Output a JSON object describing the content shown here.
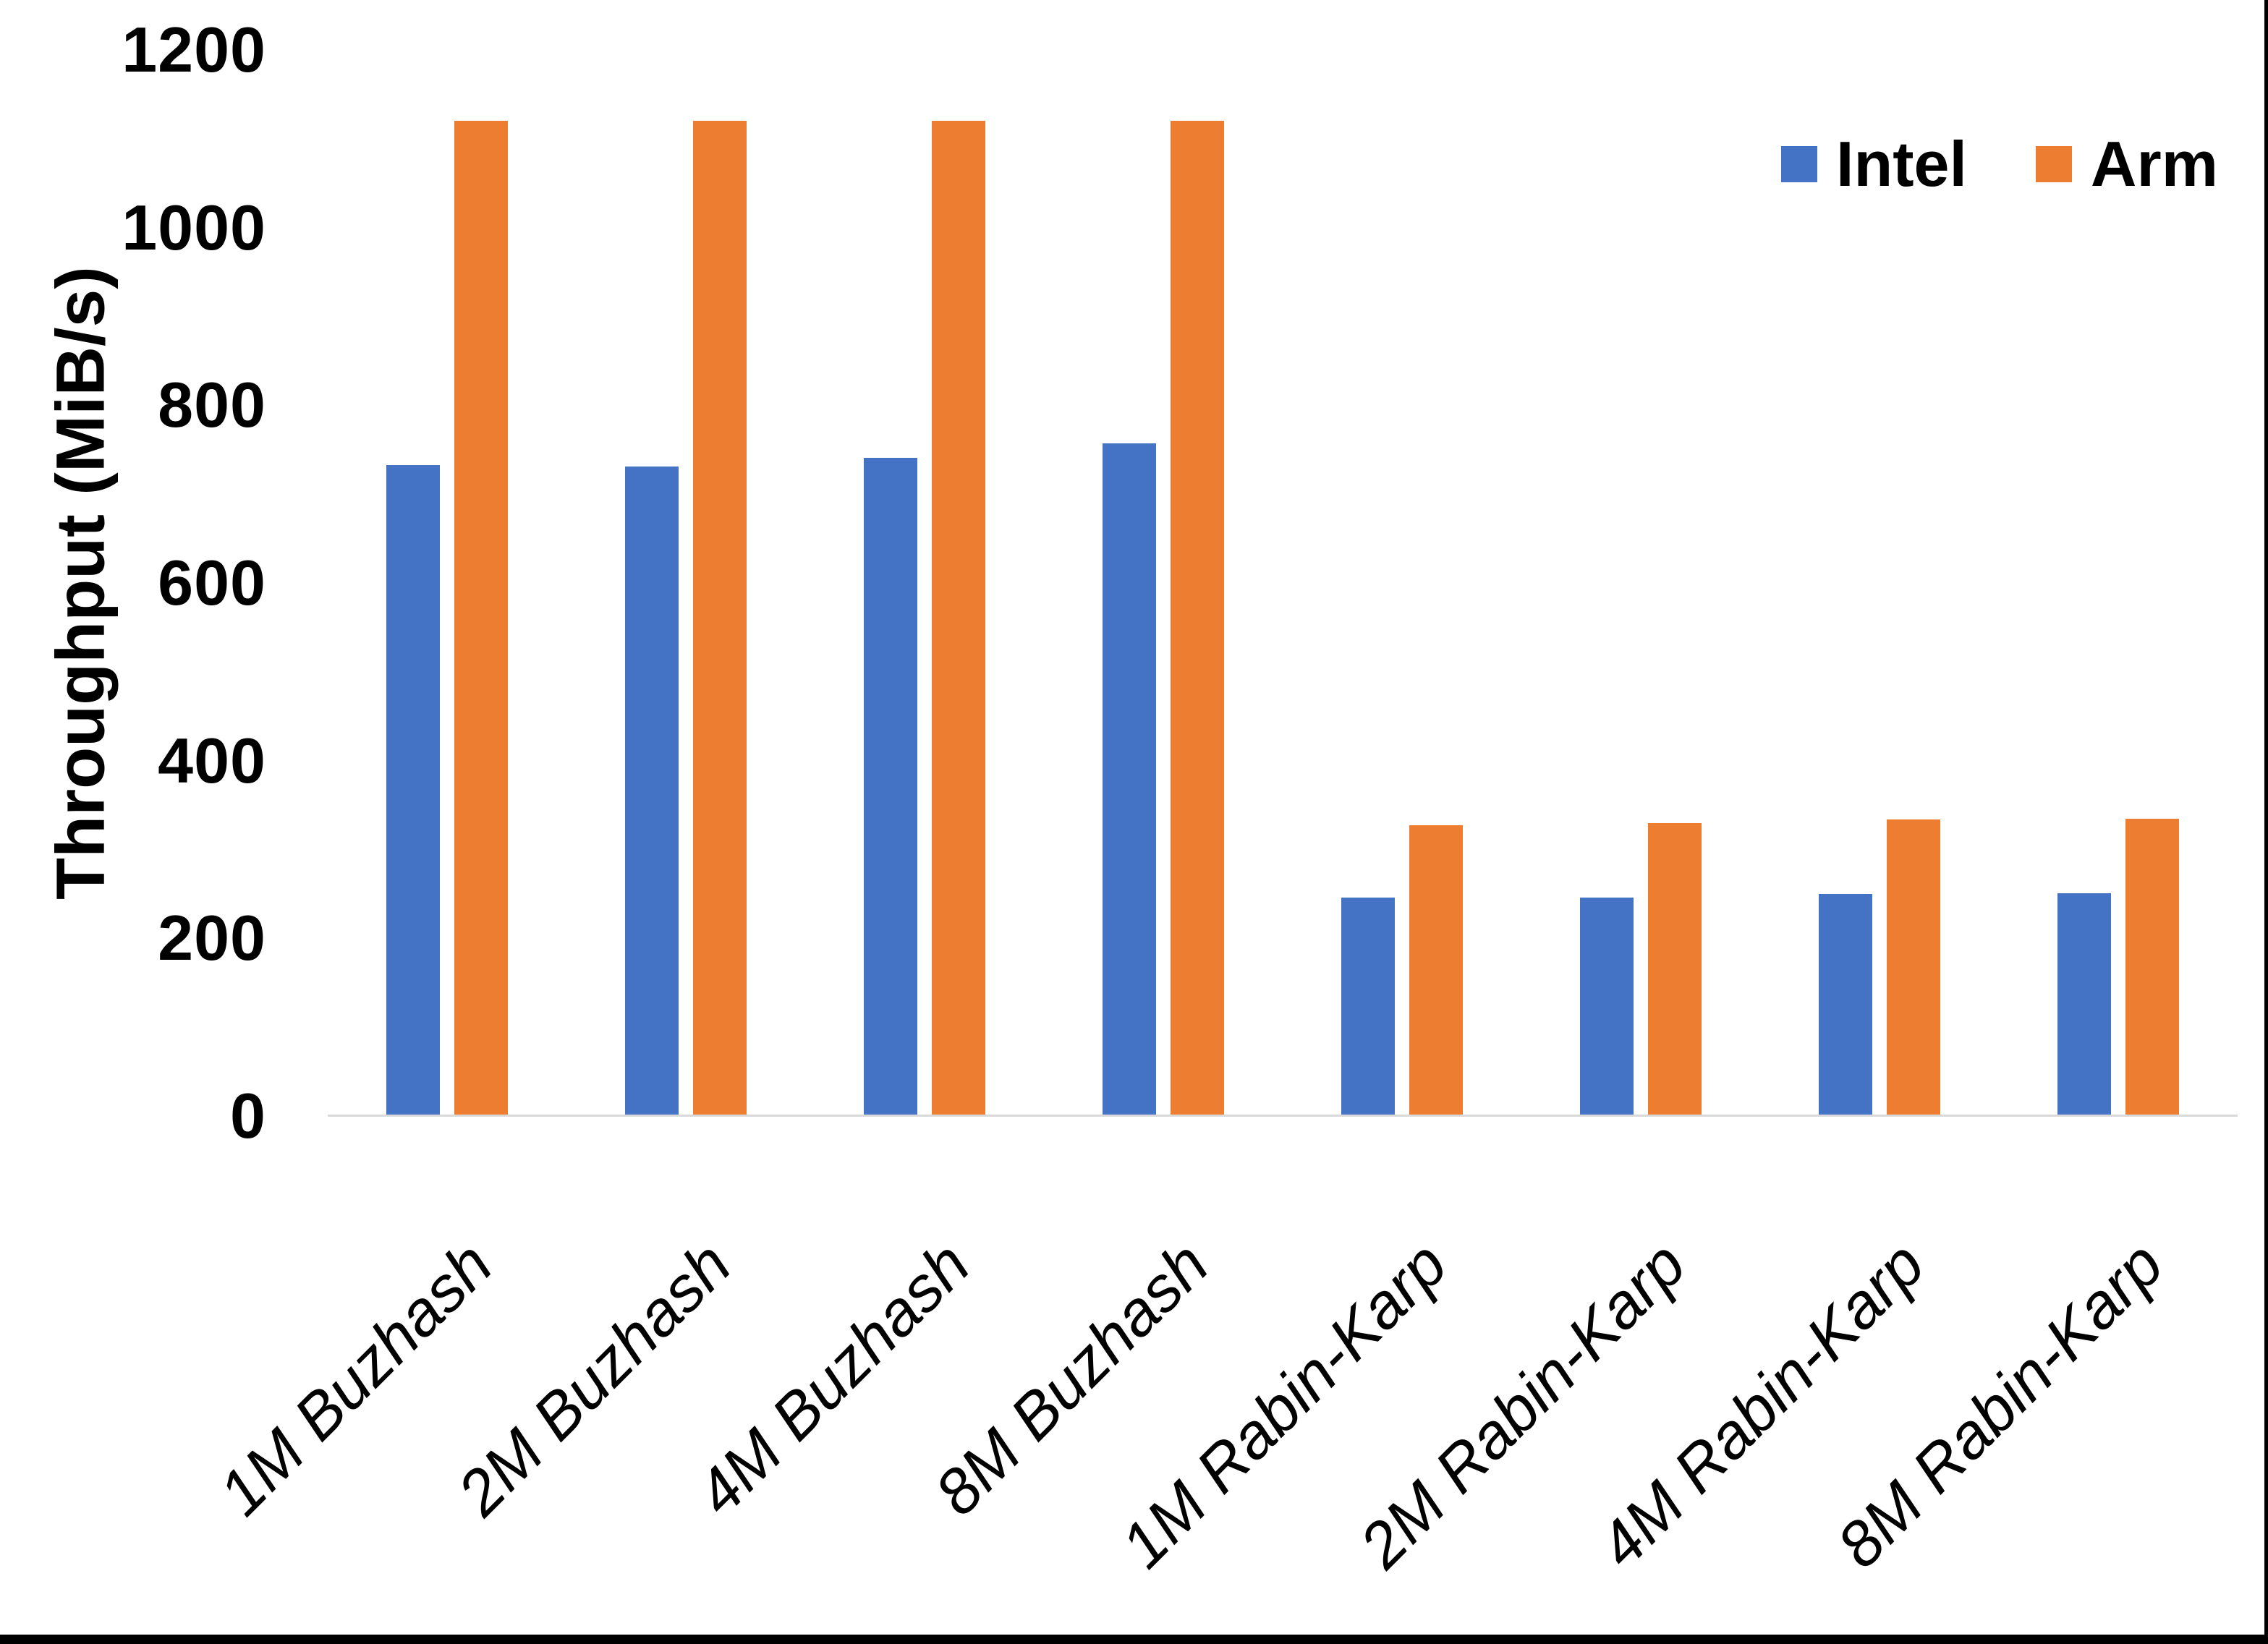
{
  "chart_data": {
    "type": "bar",
    "title": "",
    "xlabel": "",
    "ylabel": "Throughput (MiB/s)",
    "ylim": [
      0,
      1200
    ],
    "yticks": [
      0,
      200,
      400,
      600,
      800,
      1000,
      1200
    ],
    "grid": false,
    "legend_position": "top-right",
    "background_color": "#ffffff",
    "axis_line_color": "#D9D9D9",
    "text_color": "#000000",
    "categories": [
      "1M Buzhash",
      "2M Buzhash",
      "4M Buzhash",
      "8M Buzhash",
      "1M Rabin-Karp",
      "2M Rabin-Karp",
      "4M Rabin-Karp",
      "8M Rabin-Karp"
    ],
    "series": [
      {
        "name": "Intel",
        "color": "#4472C4",
        "values": [
          733,
          731,
          741,
          757,
          246,
          246,
          250,
          251
        ]
      },
      {
        "name": "Arm",
        "color": "#ED7D31",
        "values": [
          1120,
          1120,
          1120,
          1120,
          327,
          330,
          334,
          335
        ]
      }
    ]
  },
  "legend": {
    "items": [
      {
        "label": "Intel",
        "color": "#4472C4"
      },
      {
        "label": "Arm",
        "color": "#ED7D31"
      }
    ]
  }
}
